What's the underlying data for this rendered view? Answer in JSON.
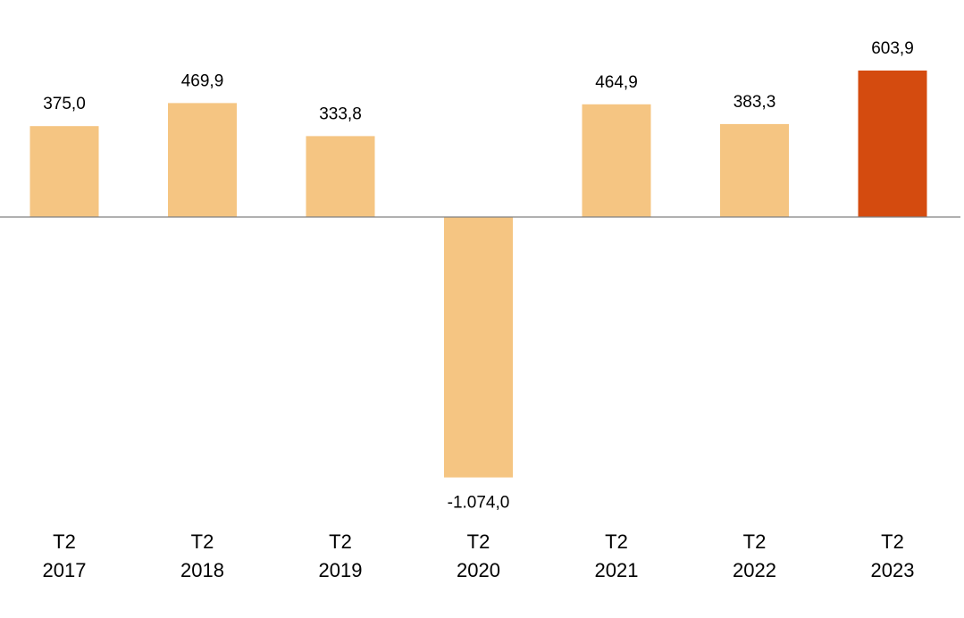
{
  "chart_data": {
    "type": "bar",
    "categories": [
      [
        "T2",
        "2017"
      ],
      [
        "T2",
        "2018"
      ],
      [
        "T2",
        "2019"
      ],
      [
        "T2",
        "2020"
      ],
      [
        "T2",
        "2021"
      ],
      [
        "T2",
        "2022"
      ],
      [
        "T2",
        "2023"
      ]
    ],
    "values": [
      375.0,
      469.9,
      333.8,
      -1074.0,
      464.9,
      383.3,
      603.9
    ],
    "data_labels": [
      "375,0",
      "469,9",
      "333,8",
      "-1.074,0",
      "464,9",
      "383,3",
      "603,9"
    ],
    "highlight_index": 6,
    "ylim": [
      -1200,
      700
    ],
    "grid": false,
    "legend": "none",
    "colors": {
      "bar": "#F5C582",
      "highlight": "#D44B0F",
      "axis": "#808080",
      "text": "#000000"
    }
  }
}
